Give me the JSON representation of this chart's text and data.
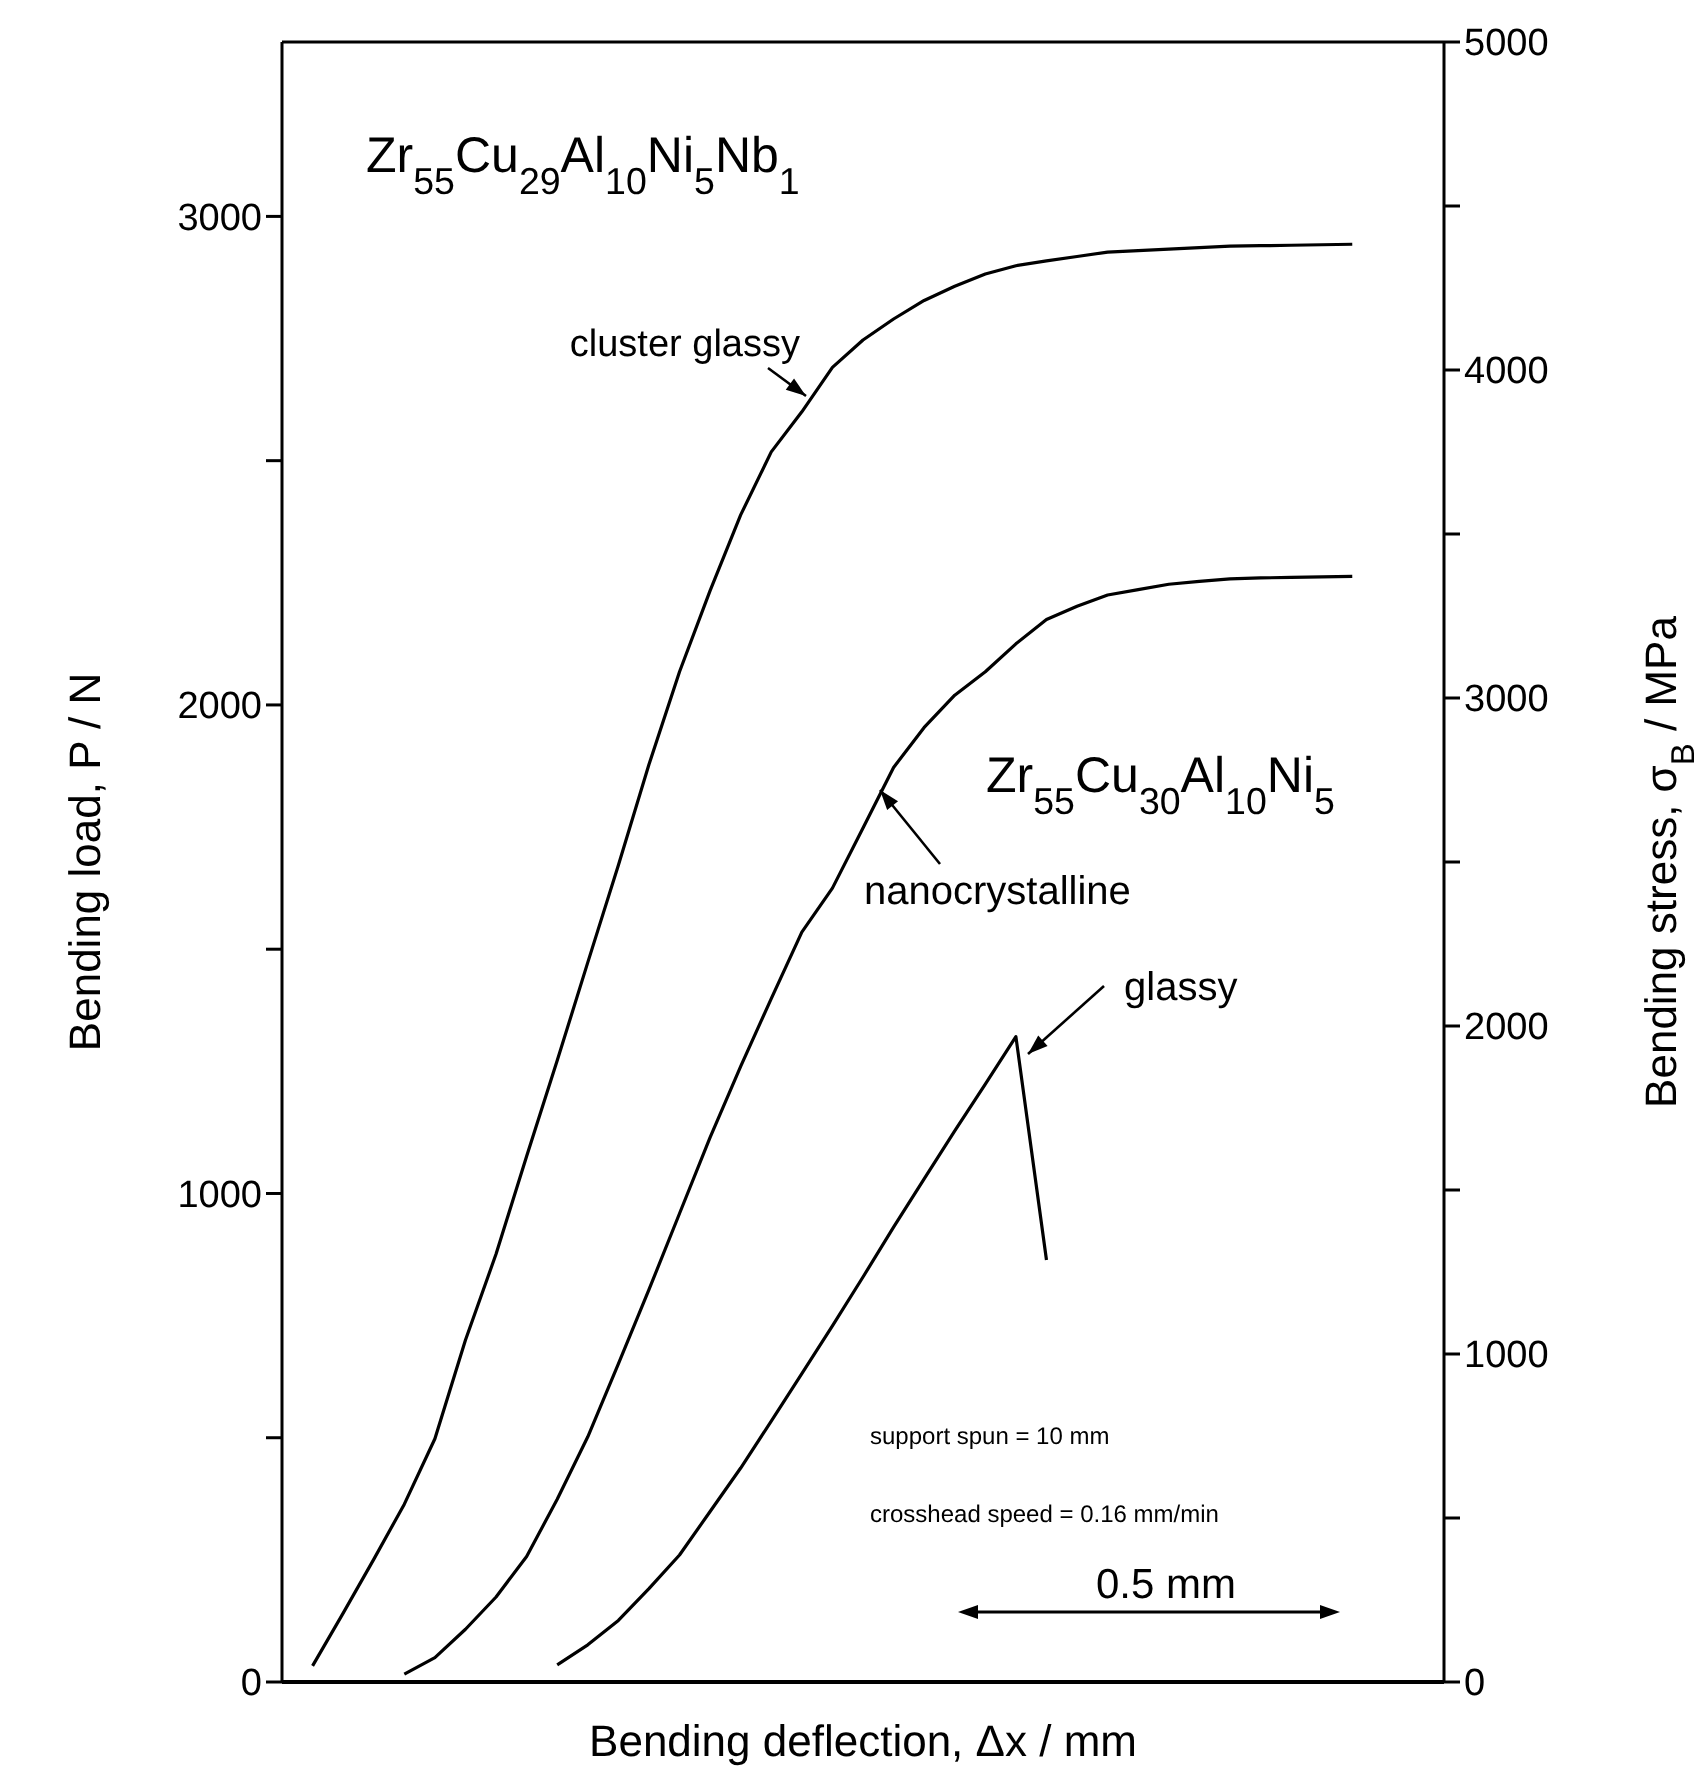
{
  "chart_data": {
    "type": "line",
    "xlabel": "Bending deflection, Δx / mm",
    "ylabel": "Bending load, P / N",
    "y2label": "Bending stress, σ$_{B}$ / MPa",
    "categories": [
      null,
      null,
      null,
      null,
      null,
      null,
      null,
      null,
      null,
      null,
      null,
      null,
      null,
      null,
      null,
      null,
      null,
      null,
      null,
      null,
      null,
      null,
      null,
      null,
      null,
      null,
      null,
      null,
      null,
      null,
      null,
      null,
      null,
      null,
      null,
      null,
      null,
      null,
      null
    ],
    "ylim": [
      0,
      3357
    ],
    "yticks": [
      0,
      {
        "value": 500,
        "label": null
      },
      1000,
      {
        "value": 1500,
        "label": null
      },
      2000,
      {
        "value": 2500,
        "label": null
      },
      3000
    ],
    "y2lim": [
      0,
      5000
    ],
    "y2ticks": [
      0,
      {
        "value": 500,
        "label": null
      },
      1000,
      {
        "value": 1500,
        "label": null
      },
      2000,
      {
        "value": 2500,
        "label": null
      },
      3000,
      {
        "value": 3500,
        "label": null
      },
      4000,
      {
        "value": 4500,
        "label": null
      },
      5000
    ],
    "tick_labels": "y",
    "marker": "none",
    "line_style": "solid",
    "series": [
      {
        "name": "cluster glassy",
        "color": "#000000",
        "values": [
          null,
          33,
          141,
          251,
          364,
          498,
          700,
          876,
          1076,
          1272,
          1473,
          1672,
          1878,
          2068,
          2234,
          2389,
          2518,
          2600,
          2691,
          2747,
          2790,
          2828,
          2857,
          2882,
          2899,
          2909,
          2918,
          2927,
          2930,
          2933,
          2936,
          2939,
          2940,
          2941,
          2942,
          2943,
          null,
          null,
          null
        ]
      },
      {
        "name": "nanocrystalline",
        "color": "#000000",
        "values": [
          null,
          null,
          null,
          null,
          16,
          50,
          108,
          174,
          257,
          374,
          502,
          651,
          803,
          959,
          1115,
          1260,
          1399,
          1535,
          1625,
          1748,
          1872,
          1954,
          2020,
          2068,
          2125,
          2175,
          2202,
          2225,
          2236,
          2247,
          2253,
          2258,
          2260,
          2261,
          2262,
          2263,
          null,
          null,
          null
        ]
      },
      {
        "name": "glassy",
        "color": "#000000",
        "values": [
          null,
          null,
          null,
          null,
          null,
          null,
          null,
          null,
          null,
          35,
          76,
          126,
          191,
          260,
          349,
          438,
          534,
          631,
          729,
          829,
          931,
          1030,
          1128,
          1224,
          1321,
          864,
          null,
          null,
          null,
          null,
          null,
          null,
          null,
          null,
          null,
          null,
          null,
          null,
          null
        ]
      }
    ],
    "annotations": [
      "Zr$_{55}$Cu$_{29}$Al$_{10}$Ni$_{5}$Nb$_{1}$",
      "Zr$_{55}$Cu$_{30}$Al$_{10}$Ni$_{5}$",
      "support spun = 10 mm",
      "crosshead speed = 0.16 mm/min",
      "0.5 mm"
    ]
  }
}
